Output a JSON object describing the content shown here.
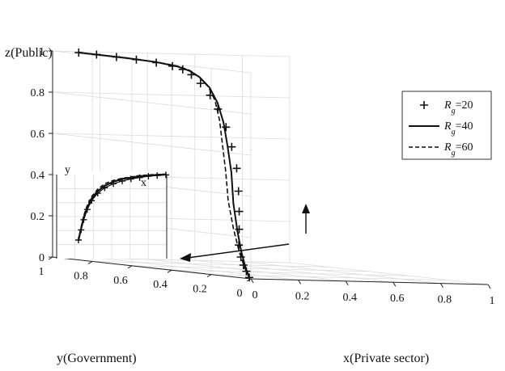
{
  "chart_data": {
    "type": "line",
    "projection": "3d",
    "axes": {
      "x": {
        "label": "x(Private sector)",
        "range": [
          0,
          1
        ],
        "ticks": [
          0,
          0.2,
          0.4,
          0.6,
          0.8,
          1
        ]
      },
      "y": {
        "label": "y(Government)",
        "range": [
          0,
          1
        ],
        "ticks": [
          0,
          0.2,
          0.4,
          0.6,
          0.8,
          1
        ]
      },
      "z": {
        "label": "z(Public)",
        "range": [
          0,
          1
        ],
        "ticks": [
          0,
          0.2,
          0.4,
          0.6,
          0.8,
          1
        ]
      }
    },
    "grid": true,
    "legend": {
      "placement": "right",
      "entries": [
        {
          "symbol": "R",
          "subscript": "g",
          "suffix": "=20",
          "style": "plus-markers"
        },
        {
          "symbol": "R",
          "subscript": "g",
          "suffix": "=40",
          "style": "solid"
        },
        {
          "symbol": "R",
          "subscript": "g",
          "suffix": "=60",
          "style": "dashed"
        }
      ]
    },
    "series": [
      {
        "name": "Rg=20",
        "points": [
          [
            0.06,
            0.08,
            0.0
          ],
          [
            0.06,
            0.1,
            0.03
          ],
          [
            0.06,
            0.12,
            0.06
          ],
          [
            0.06,
            0.14,
            0.1
          ],
          [
            0.06,
            0.16,
            0.16
          ],
          [
            0.06,
            0.17,
            0.24
          ],
          [
            0.06,
            0.18,
            0.33
          ],
          [
            0.06,
            0.19,
            0.43
          ],
          [
            0.06,
            0.2,
            0.54
          ],
          [
            0.06,
            0.22,
            0.64
          ],
          [
            0.06,
            0.24,
            0.73
          ],
          [
            0.06,
            0.27,
            0.81
          ],
          [
            0.06,
            0.3,
            0.87
          ],
          [
            0.06,
            0.34,
            0.92
          ],
          [
            0.06,
            0.38,
            0.955
          ],
          [
            0.06,
            0.42,
            0.975
          ],
          [
            0.06,
            0.47,
            0.985
          ],
          [
            0.06,
            0.55,
            0.993
          ],
          [
            0.06,
            0.65,
            0.997
          ],
          [
            0.06,
            0.75,
            0.999
          ],
          [
            0.06,
            0.85,
            1.0
          ],
          [
            0.06,
            0.94,
            1.0
          ]
        ]
      },
      {
        "name": "Rg=40",
        "points": [
          [
            0.06,
            0.08,
            0.0
          ],
          [
            0.06,
            0.1,
            0.05
          ],
          [
            0.06,
            0.12,
            0.12
          ],
          [
            0.06,
            0.14,
            0.22
          ],
          [
            0.06,
            0.16,
            0.35
          ],
          [
            0.06,
            0.17,
            0.5
          ],
          [
            0.06,
            0.19,
            0.63
          ],
          [
            0.06,
            0.21,
            0.74
          ],
          [
            0.06,
            0.24,
            0.83
          ],
          [
            0.06,
            0.28,
            0.9
          ],
          [
            0.06,
            0.33,
            0.945
          ],
          [
            0.06,
            0.38,
            0.97
          ],
          [
            0.06,
            0.44,
            0.985
          ],
          [
            0.06,
            0.55,
            0.995
          ],
          [
            0.06,
            0.7,
            0.999
          ],
          [
            0.06,
            0.85,
            1.0
          ],
          [
            0.06,
            0.94,
            1.0
          ]
        ]
      },
      {
        "name": "Rg=60",
        "points": [
          [
            0.06,
            0.08,
            0.0
          ],
          [
            0.06,
            0.1,
            0.05
          ],
          [
            0.06,
            0.12,
            0.13
          ],
          [
            0.06,
            0.14,
            0.24
          ],
          [
            0.06,
            0.16,
            0.38
          ],
          [
            0.06,
            0.17,
            0.52
          ],
          [
            0.06,
            0.19,
            0.65
          ],
          [
            0.06,
            0.21,
            0.76
          ],
          [
            0.06,
            0.24,
            0.85
          ],
          [
            0.06,
            0.28,
            0.91
          ],
          [
            0.06,
            0.33,
            0.95
          ],
          [
            0.06,
            0.38,
            0.975
          ],
          [
            0.06,
            0.44,
            0.988
          ],
          [
            0.06,
            0.55,
            0.996
          ],
          [
            0.06,
            0.7,
            0.999
          ],
          [
            0.06,
            0.85,
            1.0
          ],
          [
            0.06,
            0.94,
            1.0
          ]
        ]
      }
    ],
    "inset": {
      "labels": {
        "x": "x",
        "y": "y"
      },
      "series": [
        {
          "name": "Rg=20",
          "points": [
            [
              0.0,
              0.0
            ],
            [
              0.03,
              0.15
            ],
            [
              0.06,
              0.3
            ],
            [
              0.1,
              0.45
            ],
            [
              0.15,
              0.58
            ],
            [
              0.22,
              0.69
            ],
            [
              0.3,
              0.77
            ],
            [
              0.4,
              0.83
            ],
            [
              0.5,
              0.87
            ],
            [
              0.6,
              0.9
            ],
            [
              0.7,
              0.92
            ],
            [
              0.8,
              0.94
            ],
            [
              0.9,
              0.95
            ],
            [
              1.0,
              0.96
            ]
          ]
        },
        {
          "name": "Rg=40",
          "points": [
            [
              0.0,
              0.0
            ],
            [
              0.03,
              0.17
            ],
            [
              0.06,
              0.33
            ],
            [
              0.1,
              0.48
            ],
            [
              0.15,
              0.61
            ],
            [
              0.22,
              0.72
            ],
            [
              0.3,
              0.8
            ],
            [
              0.4,
              0.86
            ],
            [
              0.5,
              0.9
            ],
            [
              0.6,
              0.92
            ],
            [
              0.7,
              0.94
            ],
            [
              0.8,
              0.95
            ],
            [
              0.9,
              0.96
            ],
            [
              1.0,
              0.965
            ]
          ]
        },
        {
          "name": "Rg=60",
          "points": [
            [
              0.0,
              0.0
            ],
            [
              0.03,
              0.19
            ],
            [
              0.06,
              0.36
            ],
            [
              0.1,
              0.51
            ],
            [
              0.15,
              0.64
            ],
            [
              0.22,
              0.75
            ],
            [
              0.3,
              0.83
            ],
            [
              0.4,
              0.88
            ],
            [
              0.5,
              0.91
            ],
            [
              0.6,
              0.93
            ],
            [
              0.7,
              0.95
            ],
            [
              0.8,
              0.96
            ],
            [
              0.9,
              0.965
            ],
            [
              1.0,
              0.97
            ]
          ]
        }
      ]
    },
    "arrows": [
      {
        "name": "arrow-projection",
        "direction": "toward inset"
      },
      {
        "name": "arrow-up",
        "direction": "up"
      }
    ]
  }
}
